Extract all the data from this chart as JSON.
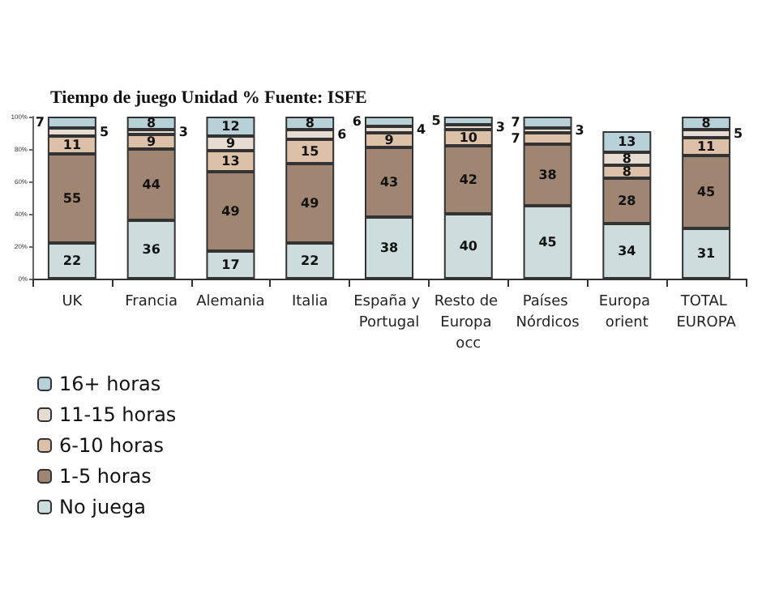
{
  "chart_data": {
    "type": "bar",
    "title": "Tiempo de juego Unidad % Fuente: ISFE",
    "stacked": true,
    "data_labels": true,
    "legend": "bottom left",
    "grid": false,
    "categories": [
      "UK",
      "Francia",
      "Alemania",
      "Italia",
      "España y Portugal",
      "Resto de Europa occ",
      "Países Nórdicos",
      "Europa orient",
      "TOTAL EUROPA"
    ],
    "ylim": [
      0,
      100
    ],
    "yticks": [
      {
        "value": 0,
        "label": "0%"
      },
      {
        "value": 20,
        "label": "20%"
      },
      {
        "value": 40,
        "label": "40%"
      },
      {
        "value": 60,
        "label": "60%"
      },
      {
        "value": 80,
        "label": "80%"
      },
      {
        "value": 100,
        "label": "100%"
      }
    ],
    "series": [
      {
        "name": "No juega",
        "color": "#cddcdc",
        "values": [
          22,
          36,
          17,
          22,
          38,
          40,
          45,
          34,
          31
        ]
      },
      {
        "name": "1-5 horas",
        "color": "#a08572",
        "values": [
          55,
          44,
          49,
          49,
          43,
          42,
          38,
          28,
          45
        ]
      },
      {
        "name": "6-10 horas",
        "color": "#dcc0a8",
        "values": [
          11,
          9,
          13,
          15,
          9,
          10,
          7,
          8,
          11
        ]
      },
      {
        "name": "11-15 horas",
        "color": "#e6dcd2",
        "values": [
          5,
          3,
          9,
          6,
          4,
          3,
          3,
          8,
          5
        ]
      },
      {
        "name": "16+ horas",
        "color": "#b8d0d8",
        "values": [
          7,
          8,
          12,
          8,
          6,
          5,
          7,
          13,
          8
        ]
      }
    ]
  }
}
